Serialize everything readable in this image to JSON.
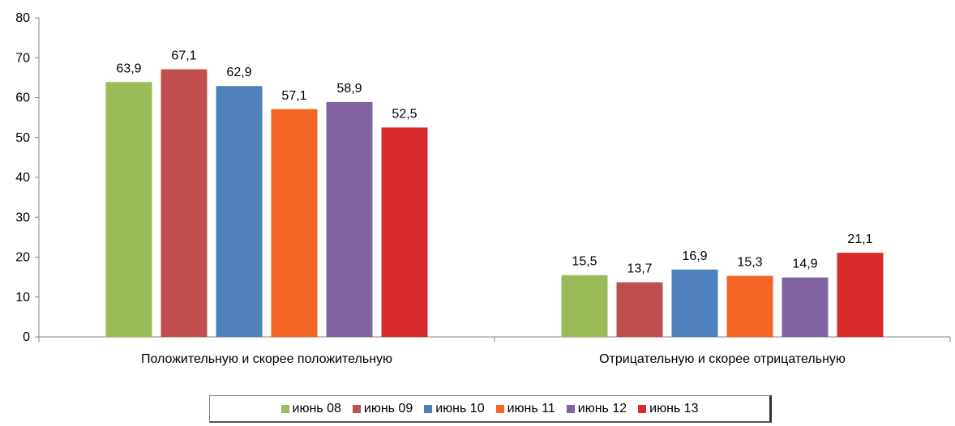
{
  "chart_data": {
    "type": "bar",
    "categories": [
      "Положительную и скорее положительную",
      "Отрицательную и скорее отрицательную"
    ],
    "series": [
      {
        "name": "июнь 08",
        "color": "#9BBB59",
        "values": [
          63.9,
          15.5
        ],
        "labels": [
          "63,9",
          "15,5"
        ]
      },
      {
        "name": "июнь 09",
        "color": "#C0504D",
        "values": [
          67.1,
          13.7
        ],
        "labels": [
          "67,1",
          "13,7"
        ]
      },
      {
        "name": "июнь 10",
        "color": "#4F81BD",
        "values": [
          62.9,
          16.9
        ],
        "labels": [
          "62,9",
          "16,9"
        ]
      },
      {
        "name": "июнь 11",
        "color": "#F26522",
        "values": [
          57.1,
          15.3
        ],
        "labels": [
          "57,1",
          "15,3"
        ]
      },
      {
        "name": "июнь 12",
        "color": "#8064A2",
        "values": [
          58.9,
          14.9
        ],
        "labels": [
          "58,9",
          "14,9"
        ]
      },
      {
        "name": "июнь 13",
        "color": "#D92B2B",
        "values": [
          52.5,
          21.1
        ],
        "labels": [
          "52,5",
          "21,1"
        ]
      }
    ],
    "ylim": [
      0,
      80
    ],
    "yticks": [
      "0",
      "10",
      "20",
      "30",
      "40",
      "50",
      "60",
      "70",
      "80"
    ],
    "grid": false,
    "legend_position": "bottom"
  }
}
